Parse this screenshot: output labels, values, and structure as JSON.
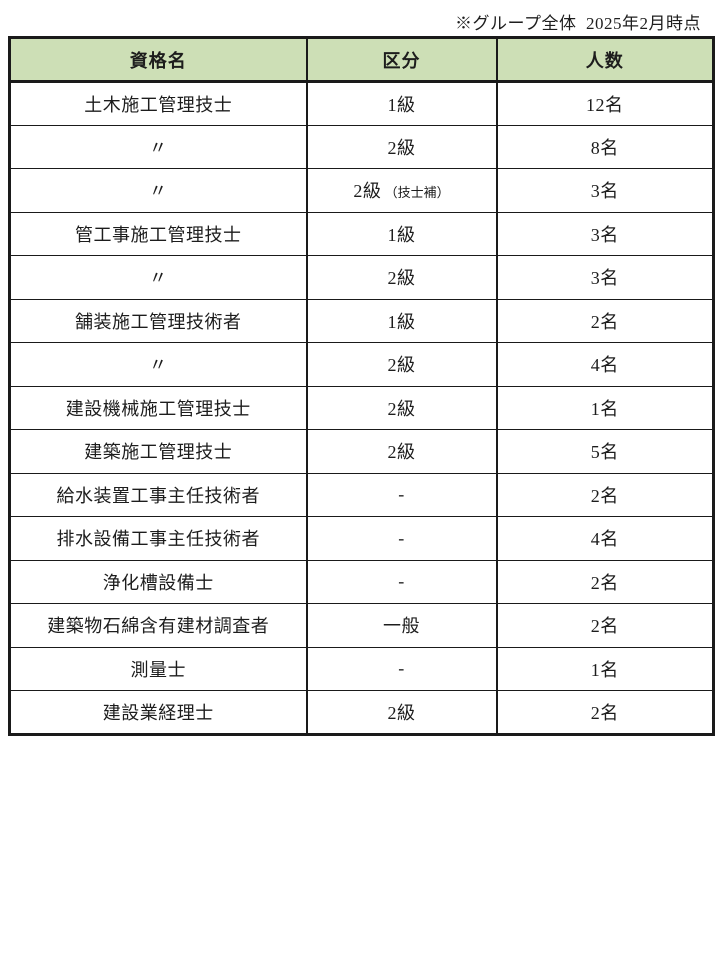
{
  "note": "※グループ全体  2025年2月時点",
  "colors": {
    "header_bg": "#cddfb6",
    "border": "#1a1a1a",
    "text": "#1d1d1d"
  },
  "table": {
    "headers": {
      "qualification": "資格名",
      "division": "区分",
      "count": "人数"
    },
    "rows": [
      {
        "qualification": "土木施工管理技士",
        "division": "1級",
        "division_note": "",
        "count": "12名"
      },
      {
        "qualification": "〃",
        "division": "2級",
        "division_note": "",
        "count": "8名"
      },
      {
        "qualification": "〃",
        "division": "2級",
        "division_note": "（技士補）",
        "count": "3名"
      },
      {
        "qualification": "管工事施工管理技士",
        "division": "1級",
        "division_note": "",
        "count": "3名"
      },
      {
        "qualification": "〃",
        "division": "2級",
        "division_note": "",
        "count": "3名"
      },
      {
        "qualification": "舗装施工管理技術者",
        "division": "1級",
        "division_note": "",
        "count": "2名"
      },
      {
        "qualification": "〃",
        "division": "2級",
        "division_note": "",
        "count": "4名"
      },
      {
        "qualification": "建設機械施工管理技士",
        "division": "2級",
        "division_note": "",
        "count": "1名"
      },
      {
        "qualification": "建築施工管理技士",
        "division": "2級",
        "division_note": "",
        "count": "5名"
      },
      {
        "qualification": "給水装置工事主任技術者",
        "division": "-",
        "division_note": "",
        "count": "2名"
      },
      {
        "qualification": "排水設備工事主任技術者",
        "division": "-",
        "division_note": "",
        "count": "4名"
      },
      {
        "qualification": "浄化槽設備士",
        "division": "-",
        "division_note": "",
        "count": "2名"
      },
      {
        "qualification": "建築物石綿含有建材調査者",
        "division": "一般",
        "division_note": "",
        "count": "2名"
      },
      {
        "qualification": "測量士",
        "division": "-",
        "division_note": "",
        "count": "1名"
      },
      {
        "qualification": "建設業経理士",
        "division": "2級",
        "division_note": "",
        "count": "2名"
      }
    ]
  }
}
